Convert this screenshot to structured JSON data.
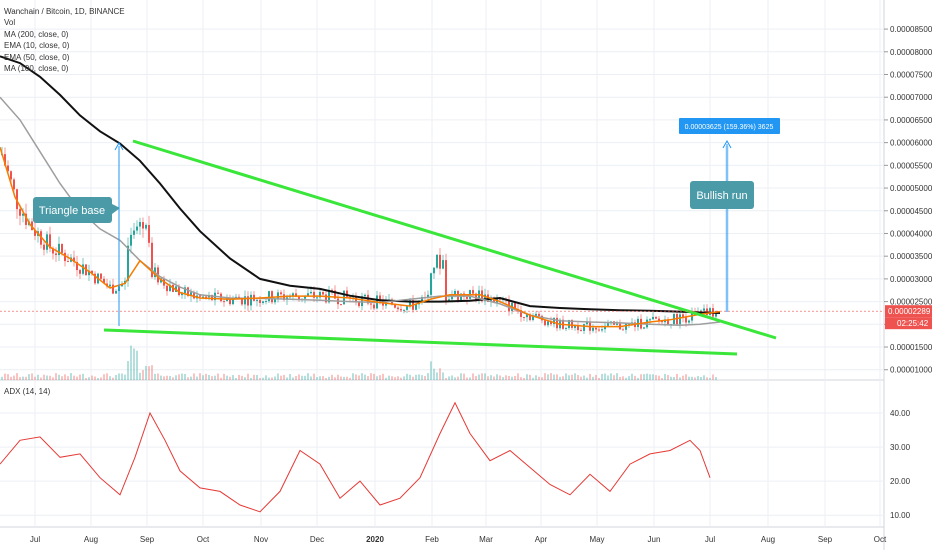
{
  "chart_data": {
    "type": "line",
    "title": "Wanchain / Bitcoin, 1D, BINANCE",
    "indicators": [
      "Vol",
      "MA (200, close, 0)",
      "EMA (10, close, 0)",
      "EMA (50, close, 0)",
      "MA (100, close, 0)"
    ],
    "x_ticks": [
      "Jul",
      "Aug",
      "Sep",
      "Oct",
      "Nov",
      "Dec",
      "2020",
      "Feb",
      "Mar",
      "Apr",
      "May",
      "Jun",
      "Jul",
      "Aug",
      "Sep",
      "Oct"
    ],
    "price_axis": {
      "ticks": [
        "0.00001000",
        "0.00001500",
        "0.00002000",
        "0.00002500",
        "0.00003000",
        "0.00003500",
        "0.00004000",
        "0.00004500",
        "0.00005000",
        "0.00005500",
        "0.00006000",
        "0.00006500",
        "0.00007000",
        "0.00007500",
        "0.00008000",
        "0.00008500"
      ],
      "ylim": [
        9.5e-06,
        8.7e-06
      ]
    },
    "current_price": "0.00002289",
    "countdown": "02:25:42",
    "series": [
      {
        "name": "MA (200, close, 0)",
        "color": "#111111",
        "x": [
          0,
          20,
          40,
          60,
          80,
          100,
          120,
          140,
          160,
          180,
          200,
          230,
          260,
          290,
          320,
          350,
          380,
          410,
          440,
          470,
          500,
          530,
          560,
          590,
          620,
          650,
          680,
          700,
          720
        ],
        "y": [
          7.9e-05,
          7.75e-05,
          7.45e-05,
          7.05e-05,
          6.6e-05,
          6.25e-05,
          5.98e-05,
          5.6e-05,
          5.1e-05,
          4.55e-05,
          4.05e-05,
          3.45e-05,
          3e-05,
          2.85e-05,
          2.78e-05,
          2.63e-05,
          2.53e-05,
          2.5e-05,
          2.5e-05,
          2.52e-05,
          2.58e-05,
          2.4e-05,
          2.36e-05,
          2.33e-05,
          2.31e-05,
          2.3e-05,
          2.28e-05,
          2.26e-05,
          2.25e-05
        ]
      },
      {
        "name": "MA (100, close, 0)",
        "color": "#9e9e9e",
        "x": [
          0,
          20,
          40,
          60,
          80,
          100,
          120,
          140,
          160,
          180,
          200,
          230,
          260,
          290,
          320,
          350,
          380,
          410,
          440,
          470,
          500,
          530,
          560,
          590,
          620,
          650,
          680,
          700,
          720
        ],
        "y": [
          7e-05,
          6.5e-05,
          5.8e-05,
          5.1e-05,
          4.5e-05,
          4.1e-05,
          3.85e-05,
          3.4e-05,
          3.05e-05,
          2.82e-05,
          2.65e-05,
          2.58e-05,
          2.57e-05,
          2.55e-05,
          2.53e-05,
          2.5e-05,
          2.48e-05,
          2.55e-05,
          2.62e-05,
          2.62e-05,
          2.45e-05,
          2.2e-05,
          2.08e-05,
          2.05e-05,
          2.03e-05,
          2e-05,
          1.98e-05,
          2e-05,
          2.05e-05
        ]
      },
      {
        "name": "EMA (50, close, 0)",
        "color": "#f57c00",
        "x": [
          0,
          15,
          30,
          50,
          70,
          90,
          110,
          125,
          140,
          160,
          180,
          200,
          230,
          260,
          290,
          320,
          350,
          380,
          410,
          430,
          450,
          480,
          500,
          530,
          560,
          590,
          620,
          650,
          670,
          690,
          700,
          720
        ],
        "y": [
          5.9e-05,
          4.8e-05,
          4.2e-05,
          3.7e-05,
          3.45e-05,
          3.15e-05,
          2.8e-05,
          2.9e-05,
          3.4e-05,
          3e-05,
          2.7e-05,
          2.58e-05,
          2.55e-05,
          2.58e-05,
          2.62e-05,
          2.62e-05,
          2.58e-05,
          2.48e-05,
          2.4e-05,
          2.55e-05,
          2.65e-05,
          2.65e-05,
          2.5e-05,
          2.2e-05,
          2e-05,
          1.95e-05,
          1.95e-05,
          2.05e-05,
          2.1e-05,
          2.18e-05,
          2.22e-05,
          2.28e-05
        ]
      },
      {
        "name": "ADX (14, 14)",
        "color": "#e53935",
        "x": [
          0,
          20,
          40,
          60,
          80,
          100,
          120,
          135,
          150,
          165,
          180,
          200,
          220,
          240,
          260,
          280,
          300,
          320,
          340,
          360,
          380,
          400,
          420,
          440,
          455,
          470,
          490,
          510,
          530,
          550,
          570,
          590,
          610,
          630,
          650,
          670,
          690,
          700,
          710
        ],
        "y": [
          25,
          32,
          33,
          27,
          28,
          21,
          16,
          27,
          40,
          32,
          23,
          18,
          17,
          13,
          11,
          17,
          29,
          25,
          15,
          20,
          13,
          15,
          21,
          34,
          43,
          34,
          26,
          29,
          24,
          19,
          16,
          22,
          17,
          25,
          28,
          29,
          32,
          29,
          21
        ]
      }
    ],
    "adx_axis": {
      "ticks": [
        "10.00",
        "20.00",
        "30.00",
        "40.00"
      ],
      "ylim": [
        8,
        45
      ]
    },
    "annotations": [
      {
        "text": "Triangle base"
      },
      {
        "text": "Bullish run"
      },
      {
        "text": "0.00003625 (159.36%) 3625"
      }
    ]
  },
  "colors": {
    "grid": "#eceff4",
    "up": "#26a69a",
    "down": "#ef5350",
    "trendline": "#39e639",
    "callout": "#4a9aa7",
    "price_tag": "#ef5350",
    "measure": "#2196f3"
  }
}
